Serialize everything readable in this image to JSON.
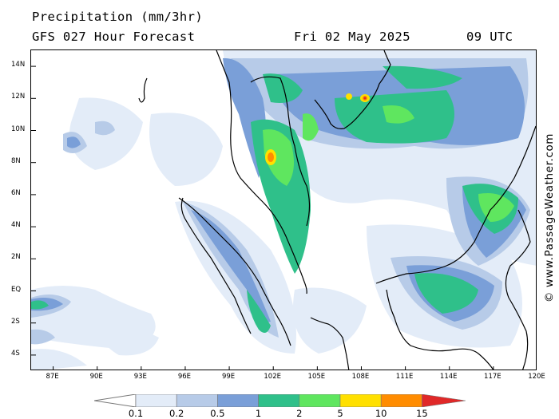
{
  "header": {
    "title": "Precipitation (mm/3hr)",
    "subtitle": "GFS 027 Hour Forecast",
    "date": "Fri 02 May 2025",
    "time": "09 UTC"
  },
  "credit": "© www.PassageWeather.com",
  "map": {
    "lat_labels": [
      "14N",
      "12N",
      "10N",
      "8N",
      "6N",
      "4N",
      "2N",
      "EQ",
      "2S",
      "4S"
    ],
    "lon_labels": [
      "87E",
      "90E",
      "93E",
      "96E",
      "99E",
      "102E",
      "105E",
      "108E",
      "111E",
      "114E",
      "117E",
      "120E"
    ],
    "lat_values": [
      14,
      12,
      10,
      8,
      6,
      4,
      2,
      0,
      -2,
      -4
    ],
    "lon_values": [
      87,
      90,
      93,
      96,
      99,
      102,
      105,
      108,
      111,
      114,
      117,
      120
    ]
  },
  "legend": {
    "labels": [
      "0.1",
      "0.2",
      "0.5",
      "1",
      "2",
      "5",
      "10",
      "15"
    ],
    "colors": [
      "#e3ecf8",
      "#b7cbe8",
      "#7a9fd8",
      "#2fc08a",
      "#5fe65f",
      "#ffe000",
      "#ff8c00",
      "#e02828"
    ]
  }
}
